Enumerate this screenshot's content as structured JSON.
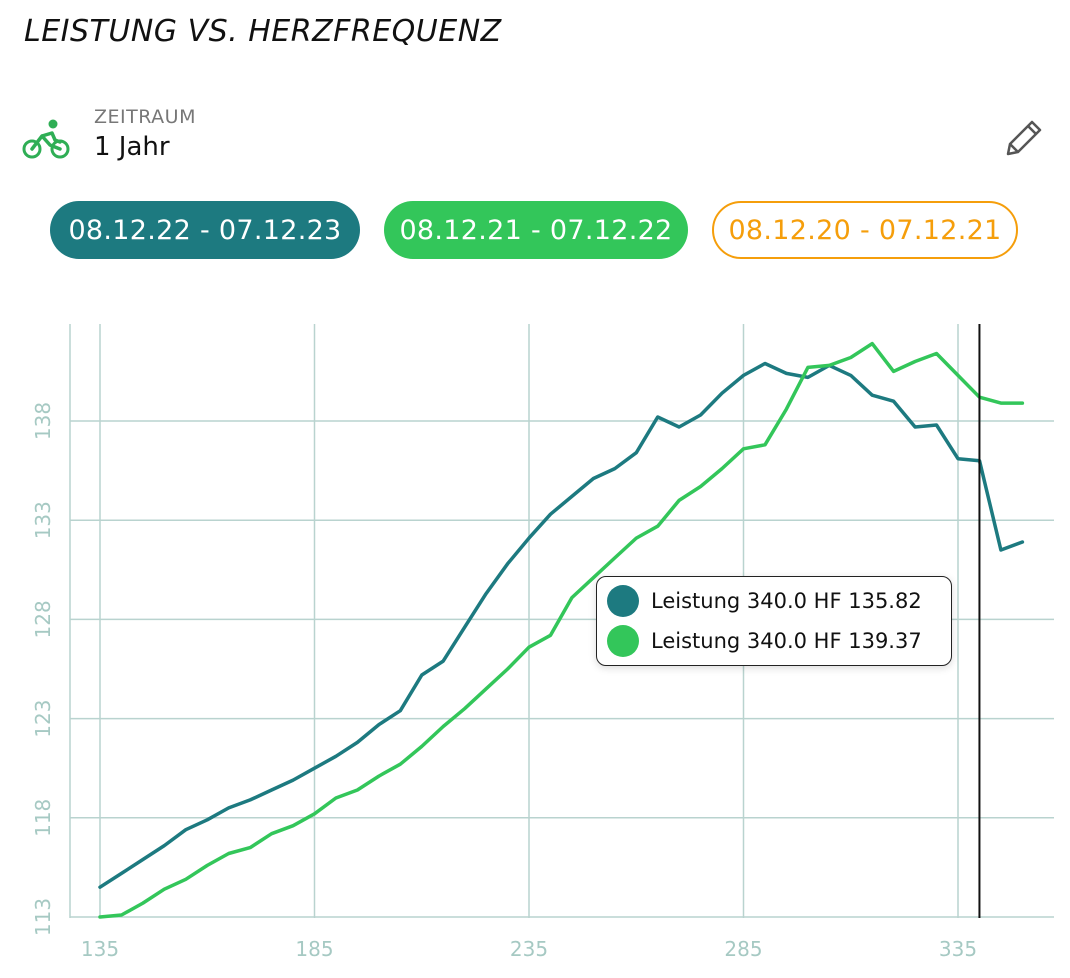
{
  "header": {
    "title": "LEISTUNG VS. HERZFREQUENZ"
  },
  "period": {
    "label": "ZEITRAUM",
    "value": "1 Jahr",
    "icon": "bicycle-icon",
    "edit_icon": "pencil-icon"
  },
  "chips": [
    {
      "label": "08.12.22 - 07.12.23",
      "color": "#1d7a80",
      "style": "filled"
    },
    {
      "label": "08.12.21 - 07.12.22",
      "color": "#33c65a",
      "style": "filled"
    },
    {
      "label": "08.12.20 - 07.12.21",
      "color": "#f59e0b",
      "style": "outlined"
    }
  ],
  "tooltip": {
    "rows": [
      {
        "text": "Leistung 340.0 HF 135.82",
        "color": "#1d7a80"
      },
      {
        "text": "Leistung 340.0 HF 139.37",
        "color": "#33c65a"
      }
    ]
  },
  "chart_data": {
    "type": "line",
    "x_ticks": [
      135,
      185,
      235,
      285,
      335
    ],
    "y_ticks": [
      113,
      118,
      123,
      128,
      133,
      138
    ],
    "xlim": [
      128,
      350
    ],
    "ylim": [
      113,
      143
    ],
    "grid": true,
    "cursor_x": 340,
    "series": [
      {
        "color": "#1d7a80",
        "x": [
          135,
          140,
          145,
          150,
          155,
          160,
          165,
          170,
          175,
          180,
          185,
          190,
          195,
          200,
          205,
          210,
          215,
          220,
          225,
          230,
          235,
          240,
          245,
          250,
          255,
          260,
          265,
          270,
          275,
          280,
          285,
          290,
          295,
          300,
          305,
          310,
          315,
          320,
          325,
          330,
          335,
          340,
          345,
          350
        ],
        "y": [
          114.5,
          115.2,
          115.9,
          116.6,
          117.4,
          117.9,
          118.5,
          118.9,
          119.4,
          119.9,
          120.5,
          121.1,
          121.8,
          122.7,
          123.4,
          125.2,
          125.9,
          127.6,
          129.3,
          130.8,
          132.1,
          133.3,
          134.2,
          135.1,
          135.6,
          136.4,
          138.2,
          137.7,
          138.3,
          139.4,
          140.3,
          140.9,
          140.4,
          140.2,
          140.8,
          140.3,
          139.3,
          139.0,
          137.7,
          137.8,
          136.1,
          136.0,
          131.5,
          131.9
        ]
      },
      {
        "color": "#33c65a",
        "x": [
          135,
          140,
          145,
          150,
          155,
          160,
          165,
          170,
          175,
          180,
          185,
          190,
          195,
          200,
          205,
          210,
          215,
          220,
          225,
          230,
          235,
          240,
          245,
          250,
          255,
          260,
          265,
          270,
          275,
          280,
          285,
          290,
          295,
          300,
          305,
          310,
          315,
          320,
          325,
          330,
          335,
          340,
          345,
          350
        ],
        "y": [
          113.0,
          113.1,
          113.7,
          114.4,
          114.9,
          115.6,
          116.2,
          116.5,
          117.2,
          117.6,
          118.2,
          119.0,
          119.4,
          120.1,
          120.7,
          121.6,
          122.6,
          123.5,
          124.5,
          125.5,
          126.6,
          127.2,
          129.1,
          130.1,
          131.1,
          132.1,
          132.7,
          134.0,
          134.7,
          135.6,
          136.6,
          136.8,
          138.6,
          140.7,
          140.8,
          141.2,
          141.9,
          140.5,
          141.0,
          141.4,
          140.3,
          139.2,
          138.9,
          138.9
        ]
      }
    ]
  }
}
